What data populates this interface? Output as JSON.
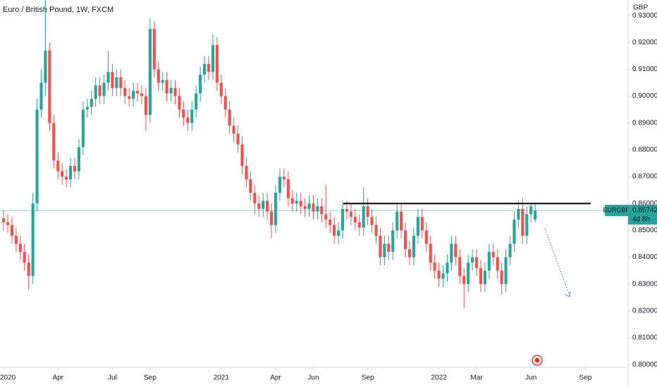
{
  "chart_data": {
    "type": "candlestick",
    "title": "Euro / British Pound, 1W, FXCM",
    "y_unit": "GBP",
    "symbol": "EURGBP",
    "last_price": 0.85742,
    "countdown": "4d 8h",
    "level_line": 0.86,
    "up_color": "#26a69a",
    "down_color": "#ef5350",
    "xlim": [
      -0.85,
      149.2
    ],
    "xticks": [
      {
        "value": 0,
        "label": "2020"
      },
      {
        "value": 13,
        "label": "Apr"
      },
      {
        "value": 26,
        "label": "Jul"
      },
      {
        "value": 35,
        "label": "Sep"
      },
      {
        "value": 52,
        "label": "2021"
      },
      {
        "value": 65,
        "label": "Apr"
      },
      {
        "value": 74,
        "label": "Jun"
      },
      {
        "value": 87,
        "label": "Sep"
      },
      {
        "value": 104,
        "label": "2022"
      },
      {
        "value": 113,
        "label": "Mar"
      },
      {
        "value": 126,
        "label": "Jun"
      },
      {
        "value": 139,
        "label": "Sep"
      }
    ],
    "ylim": [
      0.799,
      0.9358
    ],
    "yticks": [
      {
        "value": 0.8,
        "label": "0.80000"
      },
      {
        "value": 0.81,
        "label": "0.81000"
      },
      {
        "value": 0.82,
        "label": "0.82000"
      },
      {
        "value": 0.83,
        "label": "0.83000"
      },
      {
        "value": 0.84,
        "label": "0.84000"
      },
      {
        "value": 0.85,
        "label": "0.85000"
      },
      {
        "value": 0.86,
        "label": "0.86000"
      },
      {
        "value": 0.87,
        "label": "0.87000"
      },
      {
        "value": 0.88,
        "label": "0.88000"
      },
      {
        "value": 0.89,
        "label": "0.89000"
      },
      {
        "value": 0.9,
        "label": "0.90000"
      },
      {
        "value": 0.91,
        "label": "0.91000"
      },
      {
        "value": 0.92,
        "label": "0.92000"
      },
      {
        "value": 0.93,
        "label": "0.93000"
      }
    ],
    "open": [
      0.8545,
      0.853,
      0.852,
      0.848,
      0.845,
      0.842,
      0.838,
      0.833,
      0.86,
      0.895,
      0.905,
      0.917,
      0.89,
      0.876,
      0.872,
      0.87,
      0.869,
      0.874,
      0.872,
      0.881,
      0.895,
      0.896,
      0.899,
      0.904,
      0.9,
      0.905,
      0.909,
      0.903,
      0.907,
      0.903,
      0.9,
      0.899,
      0.902,
      0.901,
      0.9,
      0.893,
      0.925,
      0.91,
      0.905,
      0.906,
      0.901,
      0.903,
      0.9,
      0.895,
      0.892,
      0.89,
      0.895,
      0.901,
      0.908,
      0.912,
      0.909,
      0.919,
      0.905,
      0.9,
      0.895,
      0.889,
      0.886,
      0.882,
      0.874,
      0.869,
      0.864,
      0.86,
      0.858,
      0.861,
      0.857,
      0.852,
      0.864,
      0.87,
      0.869,
      0.862,
      0.86,
      0.861,
      0.859,
      0.858,
      0.86,
      0.857,
      0.859,
      0.856,
      0.854,
      0.852,
      0.848,
      0.85,
      0.858,
      0.857,
      0.855,
      0.853,
      0.851,
      0.859,
      0.855,
      0.852,
      0.848,
      0.84,
      0.845,
      0.842,
      0.85,
      0.857,
      0.85,
      0.843,
      0.84,
      0.848,
      0.855,
      0.85,
      0.845,
      0.838,
      0.835,
      0.832,
      0.834,
      0.838,
      0.845,
      0.84,
      0.833,
      0.83,
      0.838,
      0.84,
      0.836,
      0.83,
      0.835,
      0.842,
      0.84,
      0.835,
      0.83,
      0.84,
      0.845,
      0.854,
      0.858,
      0.848,
      0.856,
      0.854
    ],
    "high": [
      0.8575,
      0.856,
      0.855,
      0.851,
      0.848,
      0.845,
      0.841,
      0.864,
      0.899,
      0.91,
      0.936,
      0.92,
      0.893,
      0.879,
      0.875,
      0.873,
      0.877,
      0.877,
      0.884,
      0.898,
      0.899,
      0.902,
      0.907,
      0.907,
      0.908,
      0.917,
      0.912,
      0.91,
      0.91,
      0.906,
      0.903,
      0.905,
      0.905,
      0.904,
      0.903,
      0.929,
      0.928,
      0.913,
      0.909,
      0.909,
      0.906,
      0.906,
      0.903,
      0.898,
      0.895,
      0.898,
      0.904,
      0.911,
      0.915,
      0.915,
      0.923,
      0.922,
      0.908,
      0.903,
      0.898,
      0.892,
      0.889,
      0.885,
      0.877,
      0.872,
      0.867,
      0.863,
      0.864,
      0.864,
      0.86,
      0.867,
      0.873,
      0.873,
      0.872,
      0.865,
      0.864,
      0.864,
      0.862,
      0.863,
      0.863,
      0.862,
      0.862,
      0.867,
      0.857,
      0.855,
      0.853,
      0.861,
      0.861,
      0.86,
      0.858,
      0.856,
      0.866,
      0.862,
      0.858,
      0.855,
      0.851,
      0.848,
      0.848,
      0.853,
      0.86,
      0.86,
      0.853,
      0.846,
      0.851,
      0.858,
      0.858,
      0.853,
      0.848,
      0.841,
      0.838,
      0.837,
      0.841,
      0.848,
      0.848,
      0.843,
      0.836,
      0.841,
      0.843,
      0.843,
      0.839,
      0.838,
      0.845,
      0.845,
      0.843,
      0.838,
      0.843,
      0.848,
      0.857,
      0.861,
      0.862,
      0.859,
      0.86,
      0.86
    ],
    "low": [
      0.85,
      0.849,
      0.845,
      0.842,
      0.839,
      0.835,
      0.828,
      0.83,
      0.857,
      0.892,
      0.9,
      0.887,
      0.873,
      0.869,
      0.867,
      0.866,
      0.866,
      0.869,
      0.869,
      0.878,
      0.892,
      0.893,
      0.896,
      0.897,
      0.897,
      0.902,
      0.9,
      0.9,
      0.9,
      0.897,
      0.896,
      0.896,
      0.898,
      0.897,
      0.887,
      0.89,
      0.907,
      0.902,
      0.902,
      0.898,
      0.898,
      0.897,
      0.892,
      0.889,
      0.887,
      0.887,
      0.892,
      0.898,
      0.905,
      0.906,
      0.906,
      0.902,
      0.897,
      0.892,
      0.886,
      0.883,
      0.879,
      0.871,
      0.866,
      0.861,
      0.856,
      0.855,
      0.855,
      0.854,
      0.847,
      0.849,
      0.861,
      0.866,
      0.859,
      0.857,
      0.857,
      0.856,
      0.855,
      0.855,
      0.854,
      0.854,
      0.853,
      0.851,
      0.849,
      0.845,
      0.845,
      0.847,
      0.854,
      0.852,
      0.85,
      0.848,
      0.848,
      0.852,
      0.849,
      0.845,
      0.837,
      0.837,
      0.839,
      0.839,
      0.847,
      0.847,
      0.84,
      0.837,
      0.837,
      0.845,
      0.847,
      0.842,
      0.835,
      0.832,
      0.829,
      0.829,
      0.831,
      0.835,
      0.837,
      0.83,
      0.821,
      0.827,
      0.835,
      0.833,
      0.827,
      0.827,
      0.832,
      0.837,
      0.832,
      0.826,
      0.827,
      0.837,
      0.842,
      0.851,
      0.845,
      0.845,
      0.853,
      0.853
    ],
    "close": [
      0.853,
      0.852,
      0.848,
      0.845,
      0.842,
      0.838,
      0.833,
      0.86,
      0.895,
      0.905,
      0.917,
      0.89,
      0.876,
      0.872,
      0.87,
      0.869,
      0.874,
      0.872,
      0.881,
      0.895,
      0.896,
      0.899,
      0.904,
      0.9,
      0.905,
      0.909,
      0.903,
      0.907,
      0.903,
      0.9,
      0.899,
      0.902,
      0.901,
      0.9,
      0.893,
      0.925,
      0.91,
      0.905,
      0.906,
      0.901,
      0.903,
      0.9,
      0.895,
      0.892,
      0.89,
      0.895,
      0.901,
      0.908,
      0.912,
      0.909,
      0.919,
      0.905,
      0.9,
      0.895,
      0.889,
      0.886,
      0.882,
      0.874,
      0.869,
      0.864,
      0.86,
      0.858,
      0.861,
      0.857,
      0.852,
      0.864,
      0.87,
      0.869,
      0.862,
      0.86,
      0.861,
      0.859,
      0.858,
      0.86,
      0.857,
      0.859,
      0.856,
      0.854,
      0.852,
      0.848,
      0.85,
      0.858,
      0.857,
      0.855,
      0.853,
      0.851,
      0.859,
      0.855,
      0.852,
      0.848,
      0.84,
      0.845,
      0.842,
      0.85,
      0.857,
      0.85,
      0.843,
      0.84,
      0.848,
      0.855,
      0.85,
      0.845,
      0.838,
      0.835,
      0.832,
      0.834,
      0.838,
      0.845,
      0.84,
      0.833,
      0.83,
      0.838,
      0.84,
      0.836,
      0.83,
      0.835,
      0.842,
      0.84,
      0.835,
      0.83,
      0.84,
      0.845,
      0.854,
      0.858,
      0.848,
      0.856,
      0.859,
      0.85742
    ]
  }
}
